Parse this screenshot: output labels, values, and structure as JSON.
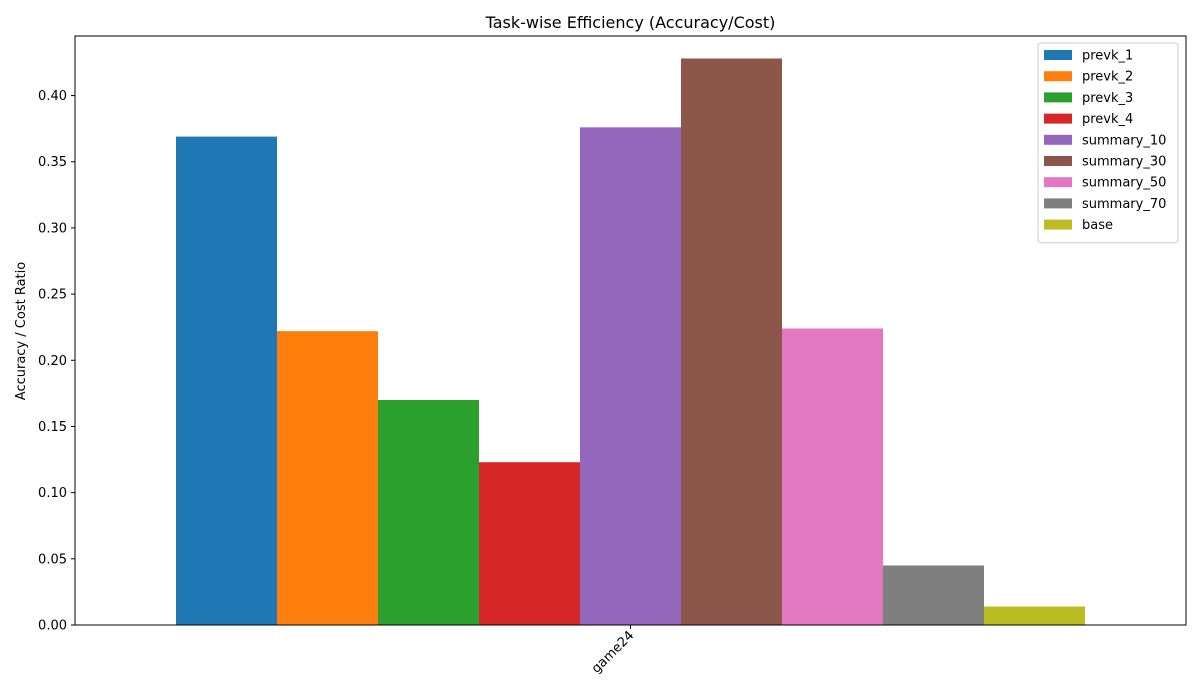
{
  "chart_data": {
    "type": "bar",
    "title": "Task-wise Efficiency (Accuracy/Cost)",
    "xlabel": "",
    "ylabel": "Accuracy / Cost Ratio",
    "categories": [
      "game24"
    ],
    "ylim": [
      0,
      0.445
    ],
    "yticks": [
      0.0,
      0.05,
      0.1,
      0.15,
      0.2,
      0.25,
      0.3,
      0.35,
      0.4
    ],
    "grid": false,
    "legend_position": "top-right",
    "series": [
      {
        "name": "prevk_1",
        "values": [
          0.369
        ],
        "color": "#1f77b4"
      },
      {
        "name": "prevk_2",
        "values": [
          0.222
        ],
        "color": "#ff7f0e"
      },
      {
        "name": "prevk_3",
        "values": [
          0.17
        ],
        "color": "#2ca02c"
      },
      {
        "name": "prevk_4",
        "values": [
          0.123
        ],
        "color": "#d62728"
      },
      {
        "name": "summary_10",
        "values": [
          0.376
        ],
        "color": "#9467bd"
      },
      {
        "name": "summary_30",
        "values": [
          0.428
        ],
        "color": "#8c564b"
      },
      {
        "name": "summary_50",
        "values": [
          0.224
        ],
        "color": "#e377c2"
      },
      {
        "name": "summary_70",
        "values": [
          0.045
        ],
        "color": "#7f7f7f"
      },
      {
        "name": "base",
        "values": [
          0.014
        ],
        "color": "#bcbd22"
      }
    ]
  }
}
